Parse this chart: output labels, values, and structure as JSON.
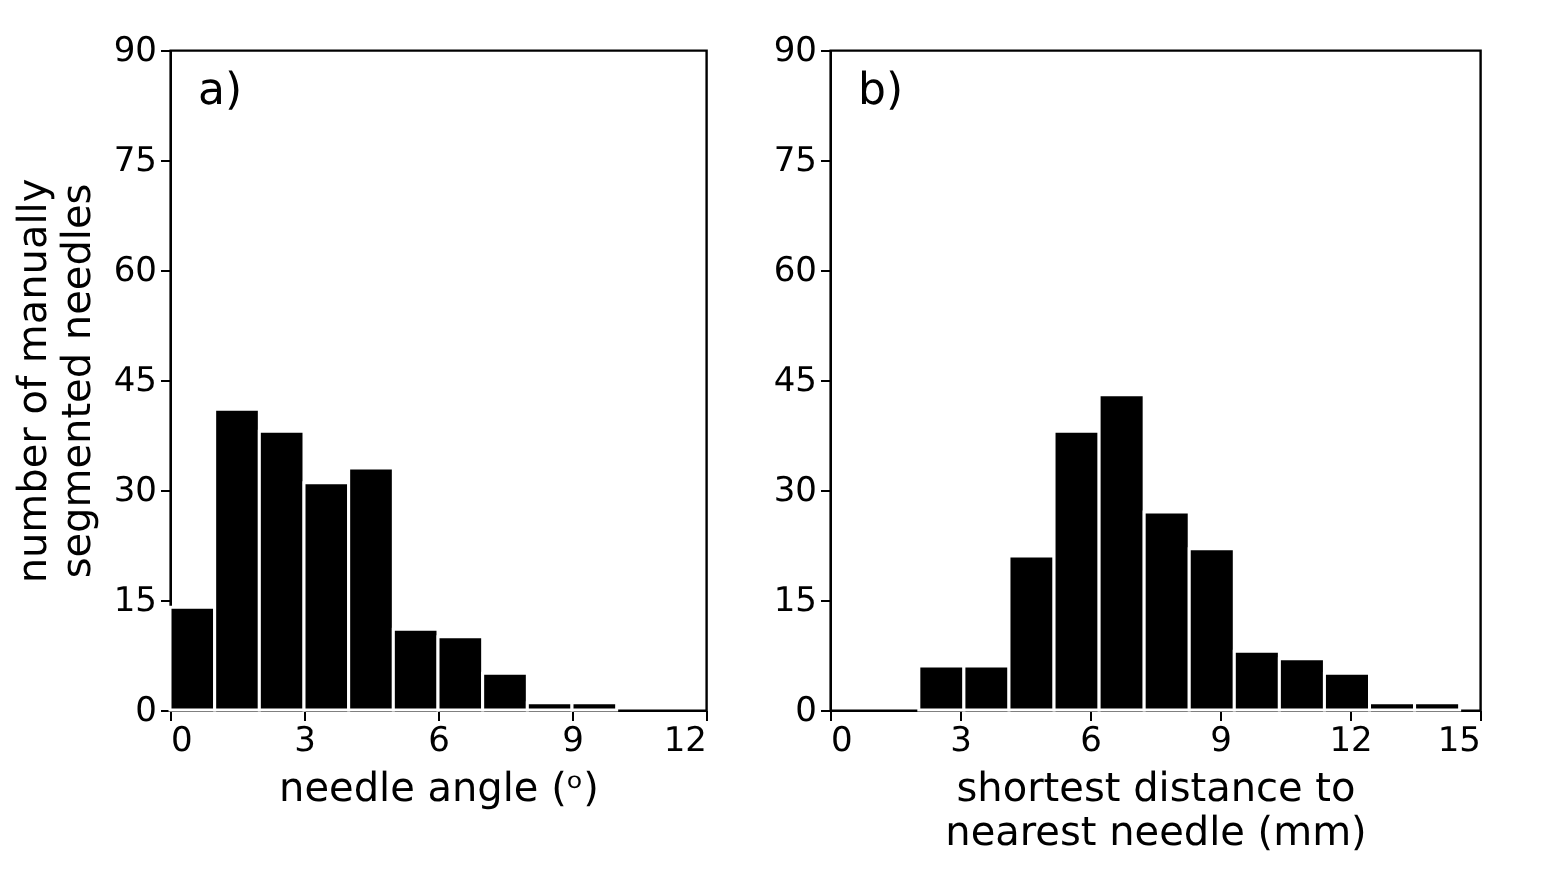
{
  "chart_data": [
    {
      "type": "histogram",
      "xlabel": "needle angle (ᵒ)",
      "ylabel": "number of manually\nsegmented needles",
      "annotations": [
        "a)"
      ],
      "color": "#000000",
      "bins": [
        0,
        1,
        2,
        3,
        4,
        5,
        6,
        7,
        8,
        9,
        10
      ],
      "values": [
        14,
        41,
        38,
        31,
        33,
        11,
        10,
        5,
        1,
        1
      ],
      "xlim": [
        0,
        12
      ],
      "xticks": [
        0,
        3,
        6,
        9,
        12
      ],
      "ylim": [
        0,
        90
      ],
      "yticks": [
        0,
        15,
        30,
        45,
        60,
        75,
        90
      ],
      "grid": false
    },
    {
      "type": "histogram",
      "xlabel": "shortest distance to\nnearest needle (mm)",
      "annotations": [
        "b)"
      ],
      "color": "#000000",
      "bins": [
        2.05,
        3.09,
        4.13,
        5.17,
        6.21,
        7.25,
        8.29,
        9.33,
        10.37,
        11.41,
        12.45,
        13.49,
        14.53
      ],
      "values": [
        6,
        6,
        21,
        38,
        43,
        27,
        22,
        8,
        7,
        5,
        1,
        1
      ],
      "xlim": [
        0,
        15
      ],
      "xticks": [
        0,
        3,
        6,
        9,
        12,
        15
      ],
      "ylim": [
        0,
        90
      ],
      "yticks": [
        0,
        15,
        30,
        45,
        60,
        75,
        90
      ],
      "grid": false
    }
  ]
}
